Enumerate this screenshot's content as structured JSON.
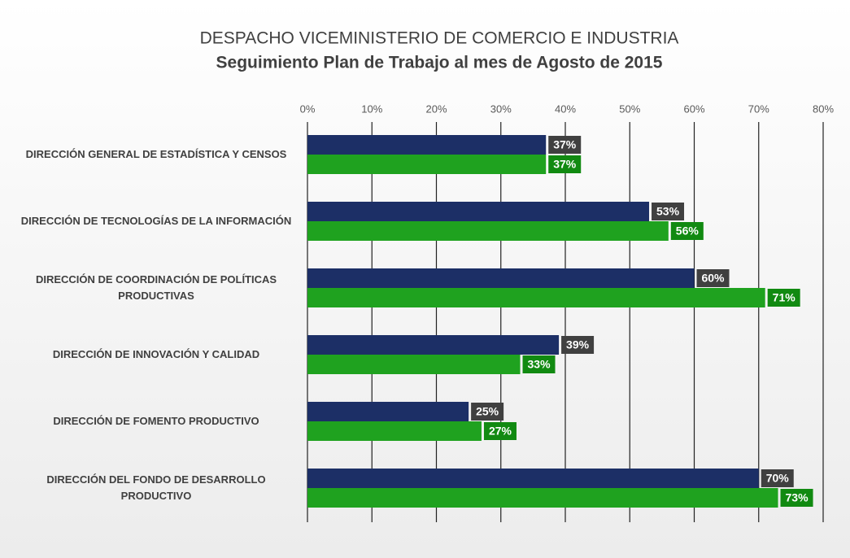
{
  "chart_data": {
    "type": "hbar",
    "title": "DESPACHO VICEMINISTERIO DE COMERCIO E INDUSTRIA",
    "subtitle": "Seguimiento Plan de Trabajo al mes de Agosto de 2015",
    "categories": [
      "DIRECCIÓN GENERAL DE ESTADÍSTICA Y CENSOS",
      "DIRECCIÓN DE TECNOLOGÍAS DE LA INFORMACIÓN",
      "DIRECCIÓN DE COORDINACIÓN DE POLÍTICAS PRODUCTIVAS",
      "DIRECCIÓN DE INNOVACIÓN Y CALIDAD",
      "DIRECCIÓN DE FOMENTO PRODUCTIVO",
      "DIRECCIÓN DEL FONDO DE DESARROLLO PRODUCTIVO"
    ],
    "series": [
      {
        "color": "#1c2f66",
        "label_color": "#404040",
        "values": [
          37,
          53,
          60,
          39,
          25,
          70
        ],
        "value_labels": [
          "37%",
          "53%",
          "60%",
          "39%",
          "25%",
          "70%"
        ]
      },
      {
        "color": "#1fa21f",
        "label_color": "#118a11",
        "values": [
          37,
          56,
          71,
          33,
          27,
          73
        ],
        "value_labels": [
          "37%",
          "56%",
          "71%",
          "33%",
          "27%",
          "73%"
        ]
      }
    ],
    "xlim": [
      0,
      80
    ],
    "xticks": [
      {
        "value": 0,
        "label": "0%"
      },
      {
        "value": 10,
        "label": "10%"
      },
      {
        "value": 20,
        "label": "20%"
      },
      {
        "value": 30,
        "label": "30%"
      },
      {
        "value": 40,
        "label": "40%"
      },
      {
        "value": 50,
        "label": "50%"
      },
      {
        "value": 60,
        "label": "60%"
      },
      {
        "value": 70,
        "label": "70%"
      },
      {
        "value": 80,
        "label": "80%"
      }
    ],
    "grid": true
  }
}
